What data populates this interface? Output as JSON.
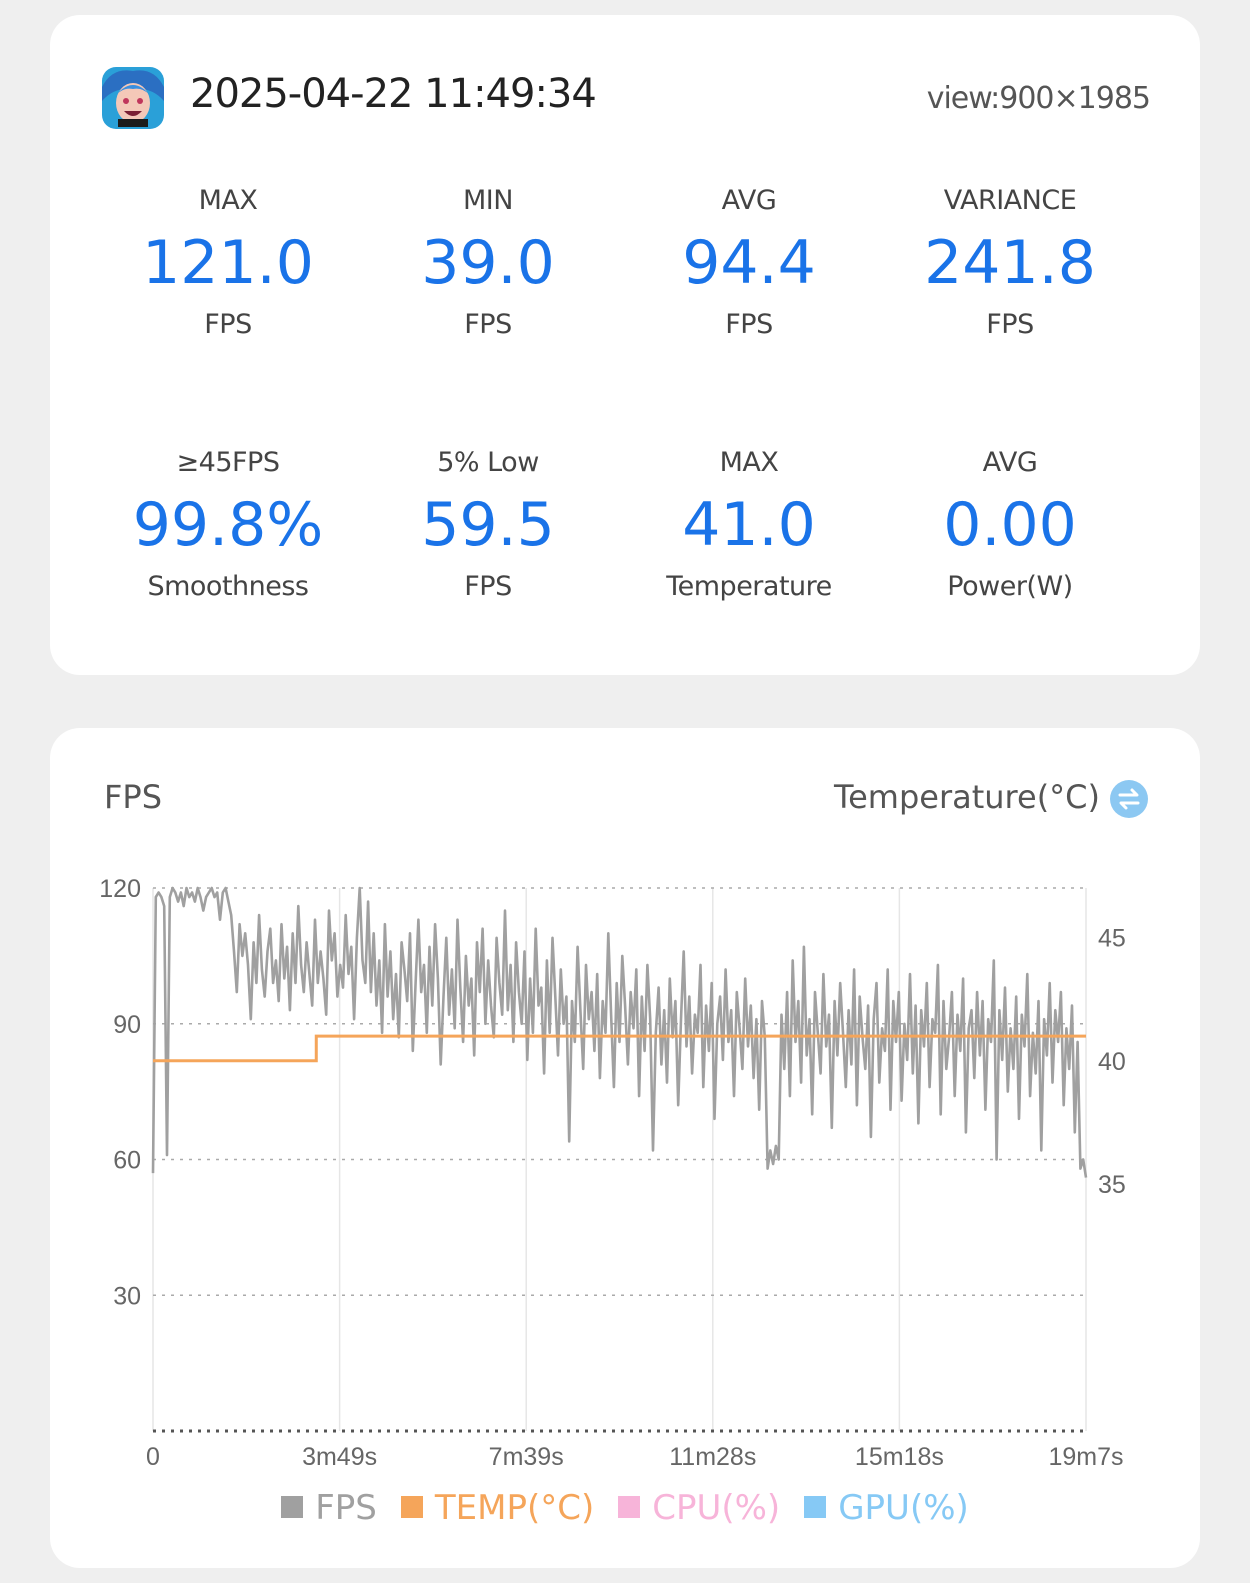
{
  "header": {
    "timestamp": "2025-04-22 11:49:34",
    "view": "view:900×1985",
    "app_icon": "game-character-icon"
  },
  "stats": [
    {
      "label": "MAX",
      "value": "121.0",
      "unit": "FPS"
    },
    {
      "label": "MIN",
      "value": "39.0",
      "unit": "FPS"
    },
    {
      "label": "AVG",
      "value": "94.4",
      "unit": "FPS"
    },
    {
      "label": "VARIANCE",
      "value": "241.8",
      "unit": "FPS"
    },
    {
      "label": "≥45FPS",
      "value": "99.8%",
      "unit": "Smoothness"
    },
    {
      "label": "5% Low",
      "value": "59.5",
      "unit": "FPS"
    },
    {
      "label": "MAX",
      "value": "41.0",
      "unit": "Temperature"
    },
    {
      "label": "AVG",
      "value": "0.00",
      "unit": "Power(W)"
    }
  ],
  "chart_header": {
    "left": "FPS",
    "right": "Temperature(°C)",
    "toggle_icon": "swap-arrows-icon"
  },
  "colors": {
    "accent": "#1a73e8",
    "fps": "#a0a0a0",
    "temp": "#f5a55a",
    "cpu": "#f7b4d9",
    "gpu": "#86c9f5"
  },
  "chart_data": {
    "type": "line",
    "x_ticks": [
      "0",
      "3m49s",
      "7m39s",
      "11m28s",
      "15m18s",
      "19m7s"
    ],
    "y_left_ticks": [
      "120",
      "90",
      "60",
      "30"
    ],
    "y_left_range": [
      0,
      120
    ],
    "y_right_ticks": [
      "45",
      "40",
      "35"
    ],
    "y_right_range": [
      25,
      47
    ],
    "grid": "dotted horizontal at 30/60/90/120, vertical at x ticks",
    "series": [
      {
        "name": "FPS",
        "values": [
          57,
          118,
          119,
          118,
          116,
          61,
          118,
          120,
          119,
          117,
          119,
          116,
          120,
          118,
          119,
          117,
          120,
          118,
          115,
          118,
          119,
          120,
          118,
          119,
          113,
          119,
          120,
          117,
          114,
          106,
          97,
          112,
          105,
          110,
          103,
          91,
          108,
          99,
          114,
          102,
          96,
          106,
          111,
          99,
          104,
          95,
          112,
          100,
          107,
          93,
          110,
          99,
          116,
          103,
          97,
          108,
          101,
          94,
          113,
          99,
          106,
          100,
          92,
          115,
          104,
          110,
          96,
          103,
          98,
          114,
          101,
          107,
          91,
          109,
          120,
          104,
          99,
          117,
          97,
          110,
          94,
          104,
          88,
          112,
          96,
          106,
          91,
          101,
          87,
          108,
          102,
          95,
          110,
          84,
          99,
          113,
          97,
          103,
          88,
          107,
          94,
          112,
          100,
          81,
          96,
          109,
          92,
          102,
          89,
          113,
          98,
          86,
          105,
          94,
          100,
          83,
          108,
          97,
          111,
          90,
          104,
          94,
          87,
          109,
          99,
          92,
          115,
          93,
          103,
          86,
          108,
          97,
          90,
          106,
          82,
          100,
          88,
          111,
          94,
          98,
          79,
          104,
          88,
          109,
          96,
          83,
          102,
          90,
          96,
          64,
          95,
          86,
          107,
          93,
          80,
          103,
          91,
          97,
          84,
          101,
          78,
          95,
          88,
          110,
          92,
          76,
          99,
          86,
          105,
          94,
          81,
          97,
          89,
          102,
          74,
          96,
          84,
          103,
          91,
          62,
          88,
          98,
          81,
          93,
          77,
          100,
          87,
          95,
          72,
          91,
          106,
          85,
          96,
          79,
          92,
          88,
          103,
          76,
          94,
          84,
          99,
          69,
          90,
          96,
          82,
          102,
          86,
          93,
          74,
          97,
          89,
          80,
          100,
          85,
          94,
          78,
          91,
          71,
          95,
          87,
          58,
          62,
          59,
          63,
          60,
          92,
          80,
          97,
          74,
          104,
          86,
          95,
          77,
          107,
          83,
          91,
          70,
          97,
          88,
          79,
          101,
          85,
          92,
          67,
          95,
          83,
          99,
          88,
          76,
          93,
          81,
          102,
          72,
          96,
          87,
          80,
          94,
          65,
          91,
          99,
          77,
          89,
          84,
          102,
          71,
          95,
          86,
          97,
          73,
          90,
          82,
          101,
          79,
          94,
          68,
          93,
          85,
          99,
          76,
          91,
          88,
          103,
          70,
          95,
          80,
          87,
          97,
          74,
          92,
          84,
          100,
          66,
          89,
          93,
          78,
          97,
          83,
          95,
          71,
          91,
          86,
          104,
          60,
          93,
          82,
          98,
          75,
          89,
          80,
          96,
          69,
          92,
          85,
          101,
          74,
          88,
          79,
          95,
          62,
          91,
          83,
          99,
          77,
          93,
          86,
          97,
          72,
          89,
          80,
          94,
          66,
          86,
          58,
          60,
          56
        ],
        "range_note": "approximate, values on left axis 0-120"
      },
      {
        "name": "TEMP(°C)",
        "values": [
          40,
          40,
          40,
          40,
          40,
          40,
          40,
          41,
          41,
          41,
          41,
          41,
          41,
          41,
          41,
          41,
          41,
          41,
          41,
          41,
          41,
          41,
          41,
          41,
          41,
          41,
          41,
          41,
          41,
          41,
          41,
          41,
          41,
          41,
          41,
          41,
          41,
          41,
          41,
          41,
          41
        ],
        "axis": "right"
      },
      {
        "name": "CPU(%)",
        "values": []
      },
      {
        "name": "GPU(%)",
        "values": []
      }
    ]
  },
  "legend": [
    {
      "label": "FPS",
      "color_key": "fps"
    },
    {
      "label": "TEMP(°C)",
      "color_key": "temp"
    },
    {
      "label": "CPU(%)",
      "color_key": "cpu"
    },
    {
      "label": "GPU(%)",
      "color_key": "gpu"
    }
  ]
}
